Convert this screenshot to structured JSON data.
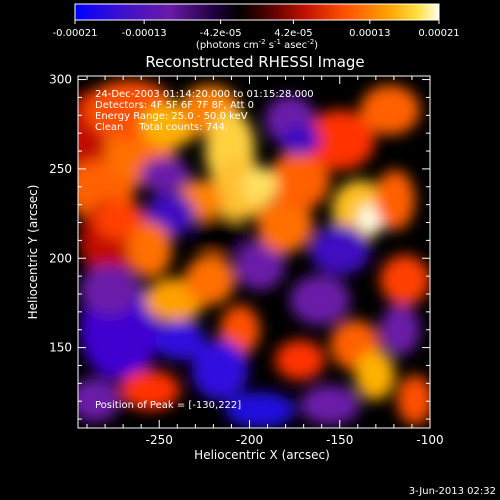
{
  "colorbar": {
    "tick_labels": [
      "-0.00021",
      "-0.00013",
      "-4.2e-05",
      "4.2e-05",
      "0.00013",
      "0.00021"
    ],
    "unit_main": "(photons cm",
    "unit_exp1": "-2",
    "unit_mid": " s",
    "unit_exp2": "-1",
    "unit_tail": " asec",
    "unit_exp3": "-2",
    "unit_close": ")",
    "colors": [
      "#0000ff",
      "#4000c0",
      "#6a1aa8",
      "#000000",
      "#5a0000",
      "#c01000",
      "#ff4000",
      "#ff9a00",
      "#ffe040",
      "#ffffe8"
    ]
  },
  "chart_data": {
    "type": "heatmap",
    "title": "Reconstructed RHESSI Image",
    "xlabel": "Heliocentric X (arcsec)",
    "ylabel": "Heliocentric Y (arcsec)",
    "xlim": [
      -295,
      -100
    ],
    "ylim": [
      105,
      302
    ],
    "xticks": [
      "-250",
      "-200",
      "-150",
      "-100"
    ],
    "yticks": [
      "150",
      "200",
      "250",
      "300"
    ],
    "color_range": [
      -0.00021,
      0.00021
    ],
    "peak": [
      -130,
      222
    ],
    "annotations": {
      "time": "24-Dec-2003 01:14:20.000 to 01:15:28.000",
      "detectors": "Detectors: 4F 5F 6F 7F 8F, Att 0",
      "energy": "Energy Range: 25.0 - 50.0 keV",
      "clean": "Clean     Total counts: 744.",
      "peak_label": "Position of Peak = [-130,222]"
    }
  },
  "footer": {
    "date": "3-Jun-2013 02:32"
  }
}
